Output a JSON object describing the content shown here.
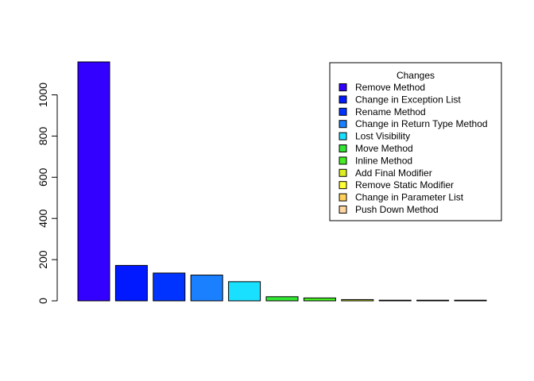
{
  "chart_data": {
    "type": "bar",
    "title": "",
    "xlabel": "",
    "ylabel": "",
    "ylim": [
      0,
      1160
    ],
    "yticks": [
      0,
      200,
      400,
      600,
      800,
      1000
    ],
    "ytick_labels": [
      "0",
      "200",
      "400",
      "600",
      "800",
      "1000"
    ],
    "grid": false,
    "legend_position": "top-right",
    "legend_title": "Changes",
    "categories": [
      "Remove Method",
      "Change in Exception List",
      "Rename Method",
      "Change in Return Type Method",
      "Lost Visibility",
      "Move Method",
      "Inline Method",
      "Add Final Modifier",
      "Remove Static Modifier",
      "Change in Parameter List",
      "Push Down Method"
    ],
    "values": [
      1160,
      172,
      135,
      125,
      93,
      20,
      14,
      6,
      2,
      1,
      1
    ],
    "colors": [
      "#3300FF",
      "#0019FF",
      "#0033FF",
      "#1A80FF",
      "#1AE0FF",
      "#33E633",
      "#44EE22",
      "#DDEE22",
      "#FFFF33",
      "#FFD05A",
      "#FFD6A0"
    ]
  }
}
